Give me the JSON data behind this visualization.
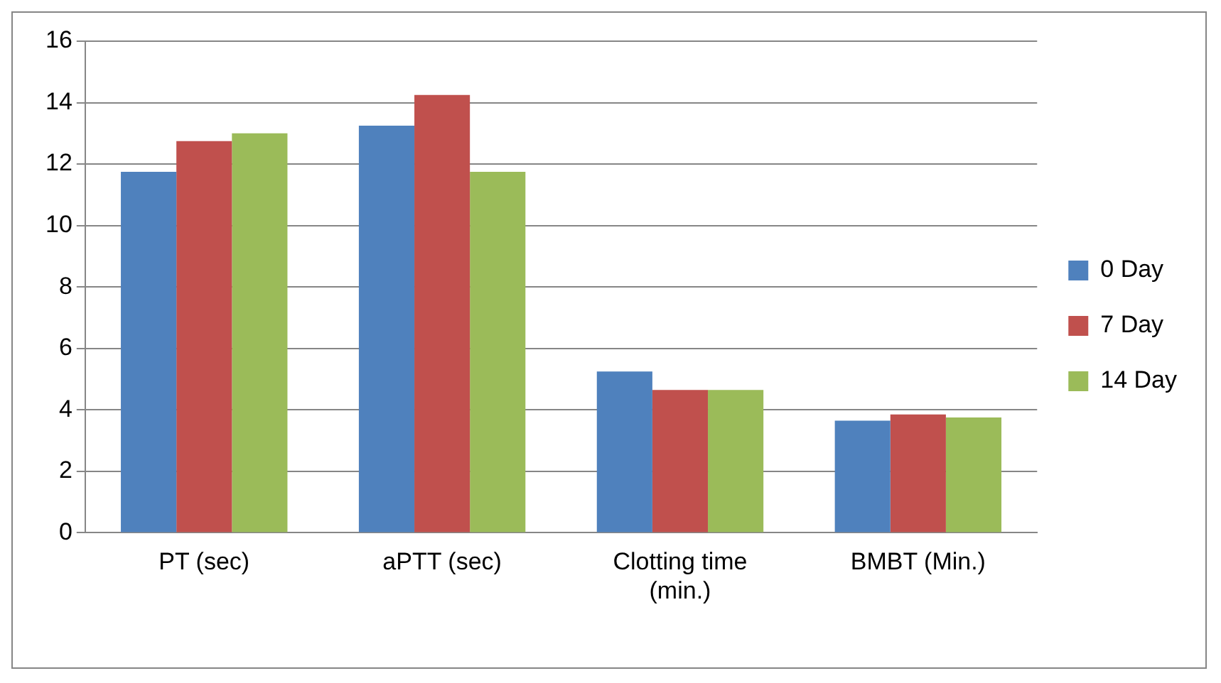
{
  "chart_data": {
    "type": "bar",
    "categories": [
      "PT (sec)",
      "aPTT (sec)",
      "Clotting time (min.)",
      "BMBT (Min.)"
    ],
    "series": [
      {
        "name": "0 Day",
        "color": "#4f81bd",
        "values": [
          11.75,
          13.25,
          5.25,
          3.65
        ]
      },
      {
        "name": "7 Day",
        "color": "#c0504d",
        "values": [
          12.75,
          14.25,
          4.65,
          3.85
        ]
      },
      {
        "name": "14 Day",
        "color": "#9bbb59",
        "values": [
          13.0,
          11.75,
          4.65,
          3.75
        ]
      }
    ],
    "ylim": [
      0,
      16
    ],
    "yticks": [
      0,
      2,
      4,
      6,
      8,
      10,
      12,
      14,
      16
    ],
    "grid": "y",
    "legend": "right"
  }
}
